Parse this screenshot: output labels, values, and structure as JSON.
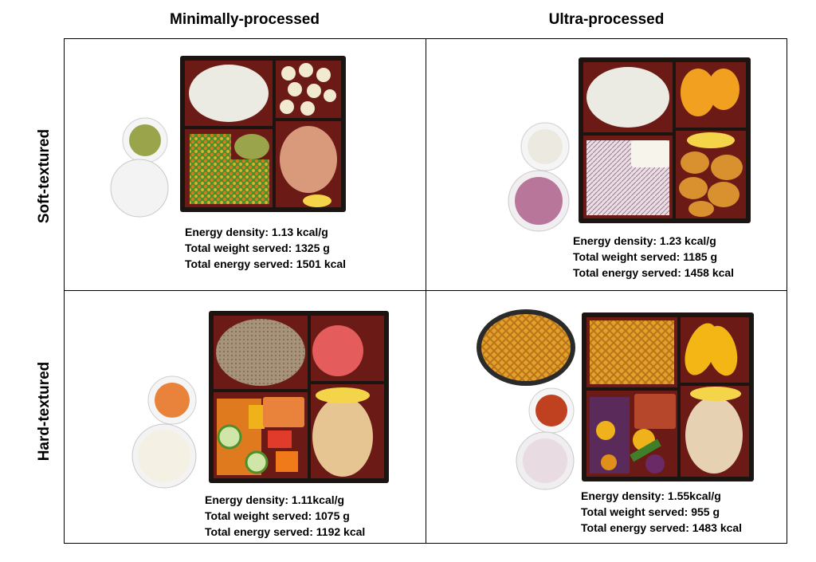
{
  "columns": [
    "Minimally-processed",
    "Ultra-processed"
  ],
  "rows": [
    "Soft-textured",
    "Hard-textured"
  ],
  "panels": [
    {
      "id": "soft-minimal",
      "stats": {
        "energy_density": "Energy density:  1.13 kcal/g",
        "total_weight": "Total weight served: 1325 g",
        "total_energy": "Total energy served: 1501 kcal"
      }
    },
    {
      "id": "soft-ultra",
      "stats": {
        "energy_density": "Energy density:  1.23 kcal/g",
        "total_weight": "Total weight served: 1185 g",
        "total_energy": "Total energy served: 1458 kcal"
      }
    },
    {
      "id": "hard-minimal",
      "stats": {
        "energy_density": "Energy density:  1.11kcal/g",
        "total_weight": "Total weight served: 1075 g",
        "total_energy": "Total energy served: 1192 kcal"
      }
    },
    {
      "id": "hard-ultra",
      "stats": {
        "energy_density": "Energy density:  1.55kcal/g",
        "total_weight": "Total weight served: 955 g",
        "total_energy": "Total energy served: 1483 kcal"
      }
    }
  ],
  "colors": {
    "tray_frame": "#1c1410",
    "tray_compartment": "#6b1a16",
    "rice_white": "#ecebe3",
    "brown_rice": "#a7927a",
    "peas_green": "#4f8f2a",
    "carrot_orange": "#e07a1f",
    "salmon": "#d89a7a",
    "banana": "#f1ead0",
    "guacamole": "#9aa44a",
    "peach": "#f2a020",
    "nugget": "#d9902f",
    "coleslaw": "#e9dfe3",
    "berry_yogurt": "#b7769a",
    "apple_red": "#e45c5c",
    "fries": "#e3a02a",
    "mango": "#f4b615",
    "chicken": "#e6d2b2",
    "salsa": "#c0411f",
    "purple_potato": "#5a2a5a"
  }
}
